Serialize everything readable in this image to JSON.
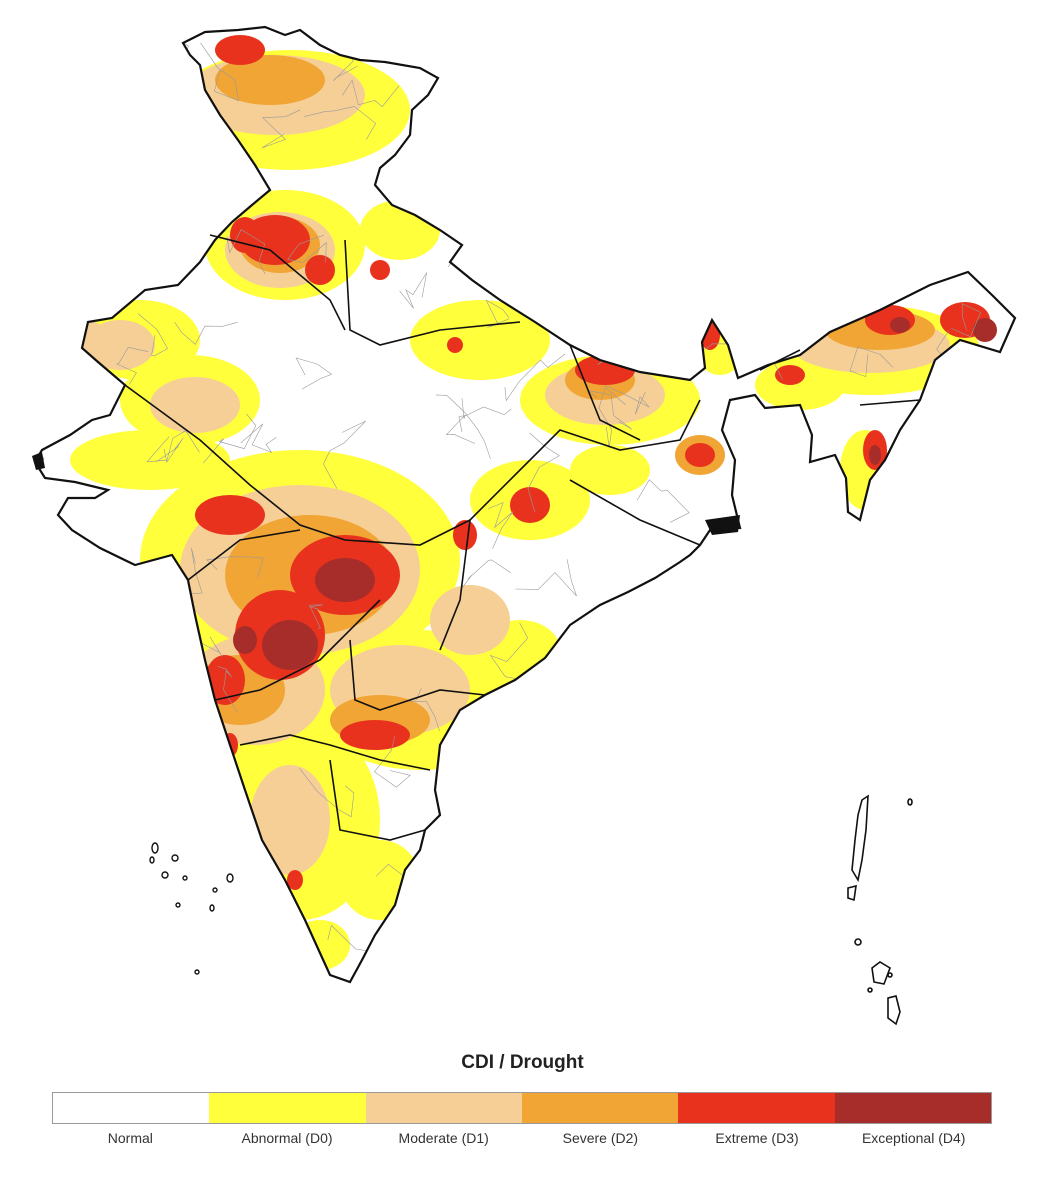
{
  "legend": {
    "title": "CDI / Drought",
    "classes": [
      {
        "key": "normal",
        "label": "Normal",
        "color": "#ffffff"
      },
      {
        "key": "d0",
        "label": "Abnormal (D0)",
        "color": "#ffff3c"
      },
      {
        "key": "d1",
        "label": "Moderate (D1)",
        "color": "#f6cf97"
      },
      {
        "key": "d2",
        "label": "Severe (D2)",
        "color": "#f0a535"
      },
      {
        "key": "d3",
        "label": "Extreme (D3)",
        "color": "#e8321d"
      },
      {
        "key": "d4",
        "label": "Exceptional (D4)",
        "color": "#a72d2b"
      }
    ]
  },
  "map": {
    "boundary_color": "#111111",
    "district_line_color": "#9a9a9a"
  }
}
